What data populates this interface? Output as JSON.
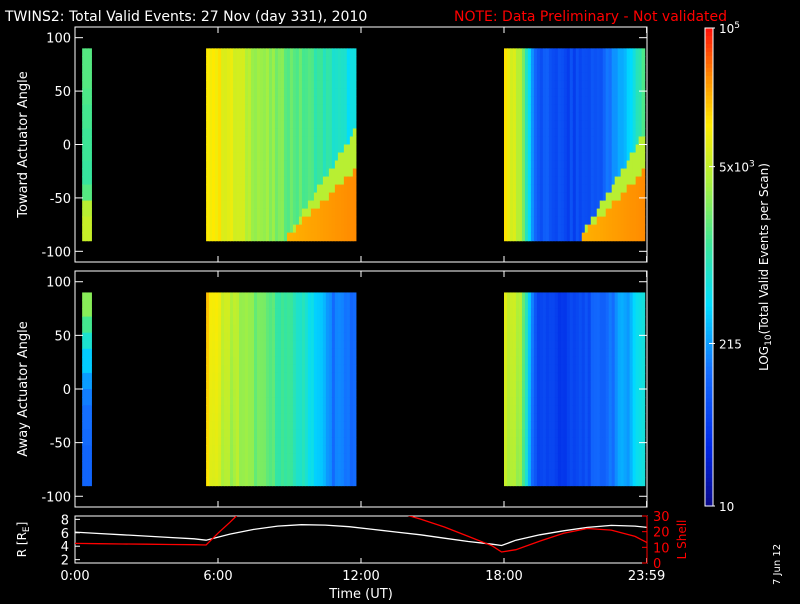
{
  "header": {
    "title": "TWINS2: Total Valid Events: 27 Nov (day 331), 2010",
    "note": "NOTE: Data Preliminary - Not validated"
  },
  "colorbar": {
    "label_main": "LOG",
    "label_sub": "10",
    "label_rest": "(Total Valid Events per Scan)",
    "ticks": [
      {
        "text": "10",
        "sup": "5",
        "frac": 1.0
      },
      {
        "text": "5x10",
        "sup": "3",
        "frac": 0.71
      },
      {
        "text": "215",
        "sup": "",
        "frac": 0.34
      },
      {
        "text": "10",
        "sup": "",
        "frac": 0.0
      }
    ]
  },
  "side_stamp": "7 Jun 12",
  "colors": {
    "background": "#000000",
    "axes": "#ffffff",
    "note": "#ff0000",
    "r_line": "#ffffff",
    "lshell_line": "#ff0000"
  },
  "chart_data": [
    {
      "type": "heatmap",
      "name": "toward",
      "ylabel": "Toward Actuator Angle",
      "ylim": [
        -110,
        110
      ],
      "yticks": [
        100,
        50,
        0,
        -50,
        -100
      ],
      "xlim": [
        0,
        24
      ],
      "data_ylim": [
        -90,
        90
      ],
      "segments": [
        {
          "x0": 0.3,
          "x1": 0.6,
          "base": [
            0.58,
            0.58,
            0.57,
            0.56,
            0.55,
            0.55,
            0.54,
            0.58,
            0.7,
            0.72
          ],
          "stripe": 0.0
        },
        {
          "x0": 5.5,
          "x1": 11.7,
          "base": [
            0.82,
            0.76,
            0.7,
            0.64,
            0.6,
            0.56,
            0.5,
            0.44
          ],
          "corner": true
        },
        {
          "x0": 18.0,
          "x1": 23.9,
          "base": [
            0.78,
            0.7,
            0.22,
            0.22,
            0.18,
            0.2,
            0.22,
            0.3,
            0.4,
            0.56
          ],
          "corner": true
        }
      ]
    },
    {
      "type": "heatmap",
      "name": "away",
      "ylabel": "Away Actuator Angle",
      "ylim": [
        -110,
        110
      ],
      "yticks": [
        100,
        50,
        0,
        -50,
        -100
      ],
      "xlim": [
        0,
        24
      ],
      "data_ylim": [
        -90,
        90
      ],
      "segments": [
        {
          "x0": 0.3,
          "x1": 0.6,
          "base": [
            0.64,
            0.56,
            0.48,
            0.4,
            0.34,
            0.3,
            0.28,
            0.27,
            0.26,
            0.26
          ],
          "stripe": 0.0
        },
        {
          "x0": 5.5,
          "x1": 11.7,
          "base": [
            0.82,
            0.72,
            0.64,
            0.58,
            0.52,
            0.46,
            0.3,
            0.28
          ],
          "corner": false
        },
        {
          "x0": 18.0,
          "x1": 23.9,
          "base": [
            0.76,
            0.68,
            0.2,
            0.18,
            0.16,
            0.2,
            0.24,
            0.3,
            0.36,
            0.48
          ],
          "corner": false
        }
      ]
    },
    {
      "type": "line",
      "name": "orbit",
      "xlabel": "Time (UT)",
      "ylabel_left": "R [R",
      "ylabel_left_sub": "E",
      "ylabel_left_end": "]",
      "ylabel_right": "L Shell",
      "xlim": [
        0,
        24
      ],
      "ylim_left": [
        1.5,
        8.5
      ],
      "ylim_right": [
        0,
        30
      ],
      "yticks_left": [
        2,
        4,
        6,
        8
      ],
      "yticks_right": [
        0,
        10,
        20,
        30
      ],
      "xticks": [
        {
          "value": 0,
          "label": "0:00"
        },
        {
          "value": 6,
          "label": "6:00"
        },
        {
          "value": 12,
          "label": "12:00"
        },
        {
          "value": 18,
          "label": "18:00"
        },
        {
          "value": 23.983,
          "label": "23:59"
        }
      ],
      "series": [
        {
          "axis": "left",
          "color": "#ffffff",
          "x": [
            0,
            1,
            2,
            3,
            4,
            5,
            5.5,
            6.5,
            7.5,
            8.5,
            9.5,
            10.5,
            11.5,
            12.5,
            13.5,
            14.5,
            15.5,
            16.5,
            17.5,
            17.9,
            18.5,
            19.5,
            20.5,
            21.5,
            22.5,
            23.5,
            24
          ],
          "y": [
            6.1,
            5.9,
            5.7,
            5.5,
            5.3,
            5.1,
            4.9,
            5.8,
            6.5,
            7.0,
            7.2,
            7.15,
            6.9,
            6.5,
            6.1,
            5.7,
            5.2,
            4.7,
            4.3,
            4.1,
            4.9,
            5.7,
            6.3,
            6.8,
            7.1,
            7.0,
            6.8
          ]
        },
        {
          "axis": "right",
          "color": "#ff0000",
          "x": [
            0,
            1,
            2,
            3,
            4,
            5,
            5.5,
            6.0,
            6.5,
            6.9,
            6.95,
            13.6,
            14.5,
            15.5,
            16.5,
            17.5,
            17.9,
            18.5,
            19.5,
            20.5,
            21.5,
            22.5,
            23.5,
            24
          ],
          "y": [
            12.5,
            12.3,
            12.1,
            12.0,
            11.8,
            11.7,
            11.5,
            19,
            26,
            32,
            null,
            32,
            28,
            23,
            17,
            11,
            7,
            8.5,
            14,
            19,
            22,
            21,
            17,
            13
          ]
        }
      ]
    }
  ]
}
